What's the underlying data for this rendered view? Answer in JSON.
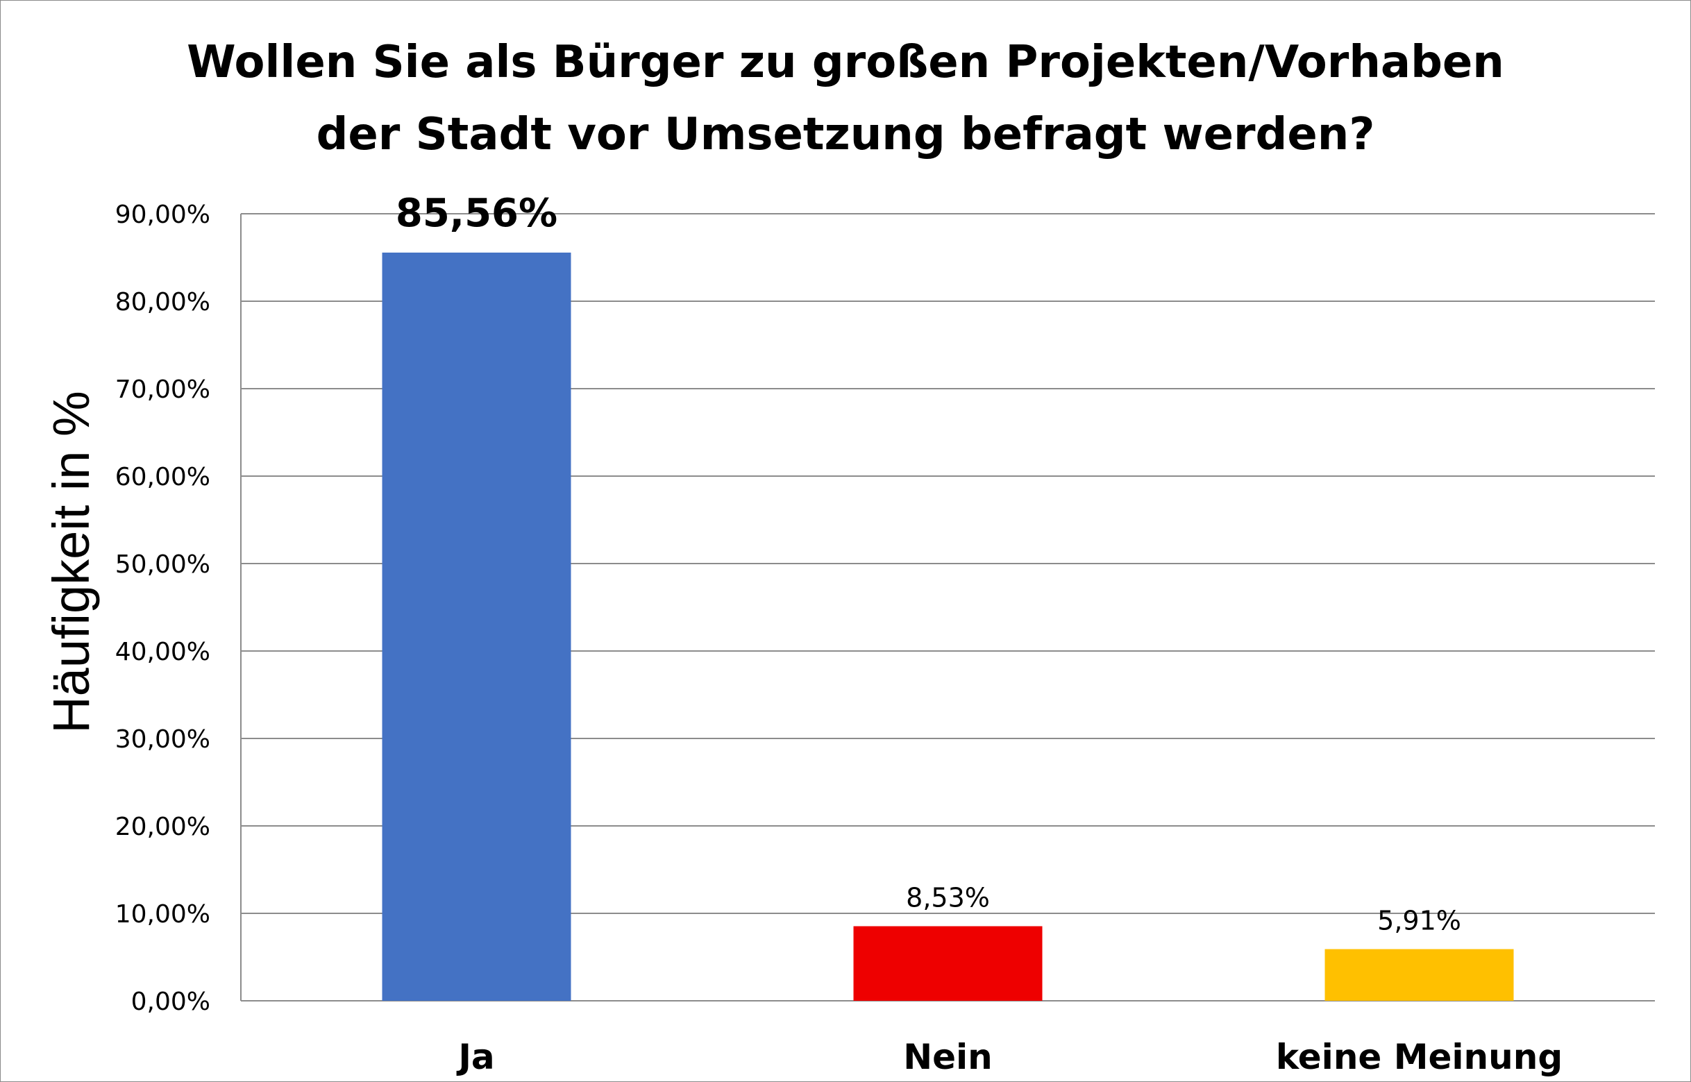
{
  "chart_data": {
    "type": "bar",
    "title_lines": [
      "Wollen Sie als Bürger zu großen Projekten/Vorhaben",
      "der Stadt vor Umsetzung befragt werden?"
    ],
    "ylabel": "Häufigkeit in %",
    "categories": [
      "Ja",
      "Nein",
      "keine Meinung"
    ],
    "values": [
      85.56,
      8.53,
      5.91
    ],
    "data_labels": [
      "85,56%",
      "8,53%",
      "5,91%"
    ],
    "colors": [
      "#4472C4",
      "#EE0000",
      "#FFC000"
    ],
    "ylim": [
      0,
      90
    ],
    "yticks": [
      0,
      10,
      20,
      30,
      40,
      50,
      60,
      70,
      80,
      90
    ],
    "ytick_labels": [
      "0,00%",
      "10,00%",
      "20,00%",
      "30,00%",
      "40,00%",
      "50,00%",
      "60,00%",
      "70,00%",
      "80,00%",
      "90,00%"
    ],
    "grid": true,
    "legend": "none"
  }
}
